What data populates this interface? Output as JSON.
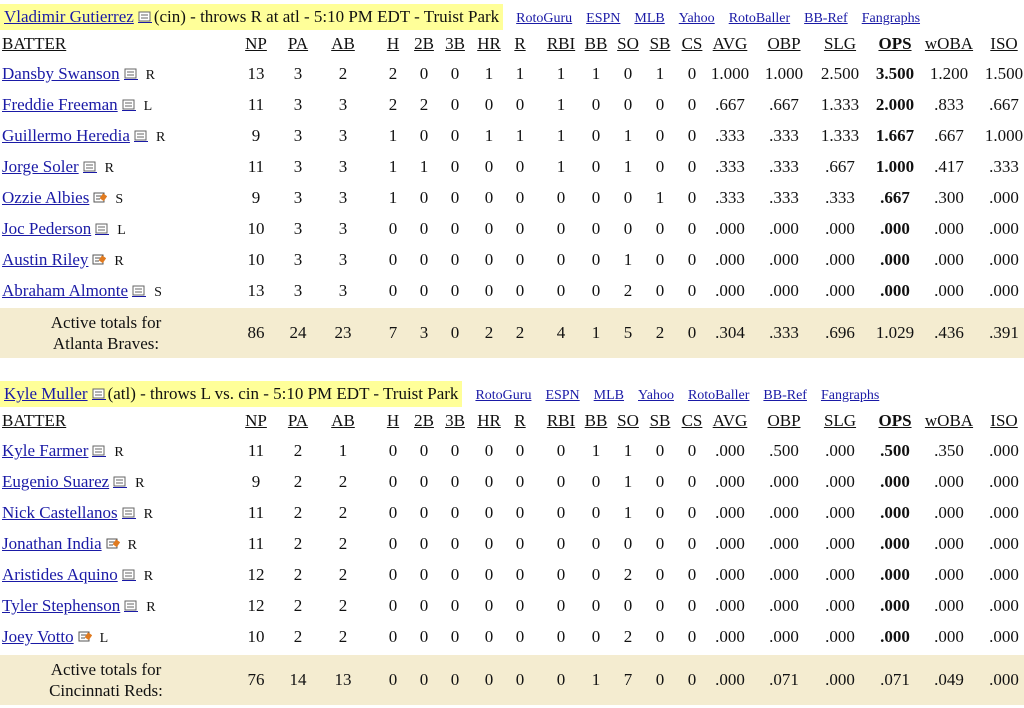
{
  "colors": {
    "highlight": "#ffff99",
    "link": "#1a1aa6",
    "totals_bg": "#f4ecd0"
  },
  "ext_links": [
    "RotoGuru",
    "ESPN",
    "MLB",
    "Yahoo",
    "RotoBaller",
    "BB-Ref",
    "Fangraphs"
  ],
  "columns": [
    "BATTER",
    "NP",
    "PA",
    "AB",
    "H",
    "2B",
    "3B",
    "HR",
    "R",
    "RBI",
    "BB",
    "SO",
    "SB",
    "CS",
    "AVG",
    "OBP",
    "SLG",
    "OPS",
    "wOBA",
    "ISO"
  ],
  "games": [
    {
      "pitcher": "Vladimir Gutierrez",
      "info": "(cin) - throws R at atl - 5:10 PM EDT - Truist Park",
      "batters": [
        {
          "name": "Dansby Swanson",
          "hand": "R",
          "icon": "note-icon",
          "stats": [
            "13",
            "3",
            "2",
            "2",
            "0",
            "0",
            "1",
            "1",
            "1",
            "1",
            "0",
            "1",
            "0",
            "1.000",
            "1.000",
            "2.500",
            "3.500",
            "1.200",
            "1.500"
          ]
        },
        {
          "name": "Freddie Freeman",
          "hand": "L",
          "icon": "note-icon",
          "stats": [
            "11",
            "3",
            "3",
            "2",
            "2",
            "0",
            "0",
            "0",
            "1",
            "0",
            "0",
            "0",
            "0",
            ".667",
            ".667",
            "1.333",
            "2.000",
            ".833",
            ".667"
          ]
        },
        {
          "name": "Guillermo Heredia",
          "hand": "R",
          "icon": "note-icon",
          "stats": [
            "9",
            "3",
            "3",
            "1",
            "0",
            "0",
            "1",
            "1",
            "1",
            "0",
            "1",
            "0",
            "0",
            ".333",
            ".333",
            "1.333",
            "1.667",
            ".667",
            "1.000"
          ]
        },
        {
          "name": "Jorge Soler",
          "hand": "R",
          "icon": "note-icon",
          "stats": [
            "11",
            "3",
            "3",
            "1",
            "1",
            "0",
            "0",
            "0",
            "1",
            "0",
            "1",
            "0",
            "0",
            ".333",
            ".333",
            ".667",
            "1.000",
            ".417",
            ".333"
          ]
        },
        {
          "name": "Ozzie Albies",
          "hand": "S",
          "icon": "note-edit-icon",
          "stats": [
            "9",
            "3",
            "3",
            "1",
            "0",
            "0",
            "0",
            "0",
            "0",
            "0",
            "0",
            "1",
            "0",
            ".333",
            ".333",
            ".333",
            ".667",
            ".300",
            ".000"
          ]
        },
        {
          "name": "Joc Pederson",
          "hand": "L",
          "icon": "note-icon",
          "stats": [
            "10",
            "3",
            "3",
            "0",
            "0",
            "0",
            "0",
            "0",
            "0",
            "0",
            "0",
            "0",
            "0",
            ".000",
            ".000",
            ".000",
            ".000",
            ".000",
            ".000"
          ]
        },
        {
          "name": "Austin Riley",
          "hand": "R",
          "icon": "note-edit-icon",
          "stats": [
            "10",
            "3",
            "3",
            "0",
            "0",
            "0",
            "0",
            "0",
            "0",
            "0",
            "1",
            "0",
            "0",
            ".000",
            ".000",
            ".000",
            ".000",
            ".000",
            ".000"
          ]
        },
        {
          "name": "Abraham Almonte",
          "hand": "S",
          "icon": "note-icon",
          "stats": [
            "13",
            "3",
            "3",
            "0",
            "0",
            "0",
            "0",
            "0",
            "0",
            "0",
            "2",
            "0",
            "0",
            ".000",
            ".000",
            ".000",
            ".000",
            ".000",
            ".000"
          ]
        }
      ],
      "totals_label": [
        "Active totals for",
        "Atlanta Braves:"
      ],
      "totals": [
        "86",
        "24",
        "23",
        "7",
        "3",
        "0",
        "2",
        "2",
        "4",
        "1",
        "5",
        "2",
        "0",
        ".304",
        ".333",
        ".696",
        "1.029",
        ".436",
        ".391"
      ]
    },
    {
      "pitcher": "Kyle Muller",
      "info": "(atl) - throws L vs. cin - 5:10 PM EDT - Truist Park",
      "batters": [
        {
          "name": "Kyle Farmer",
          "hand": "R",
          "icon": "note-icon",
          "stats": [
            "11",
            "2",
            "1",
            "0",
            "0",
            "0",
            "0",
            "0",
            "0",
            "1",
            "1",
            "0",
            "0",
            ".000",
            ".500",
            ".000",
            ".500",
            ".350",
            ".000"
          ]
        },
        {
          "name": "Eugenio Suarez",
          "hand": "R",
          "icon": "note-icon",
          "stats": [
            "9",
            "2",
            "2",
            "0",
            "0",
            "0",
            "0",
            "0",
            "0",
            "0",
            "1",
            "0",
            "0",
            ".000",
            ".000",
            ".000",
            ".000",
            ".000",
            ".000"
          ]
        },
        {
          "name": "Nick Castellanos",
          "hand": "R",
          "icon": "note-icon",
          "stats": [
            "11",
            "2",
            "2",
            "0",
            "0",
            "0",
            "0",
            "0",
            "0",
            "0",
            "1",
            "0",
            "0",
            ".000",
            ".000",
            ".000",
            ".000",
            ".000",
            ".000"
          ]
        },
        {
          "name": "Jonathan India",
          "hand": "R",
          "icon": "note-edit-icon",
          "stats": [
            "11",
            "2",
            "2",
            "0",
            "0",
            "0",
            "0",
            "0",
            "0",
            "0",
            "0",
            "0",
            "0",
            ".000",
            ".000",
            ".000",
            ".000",
            ".000",
            ".000"
          ]
        },
        {
          "name": "Aristides Aquino",
          "hand": "R",
          "icon": "note-icon",
          "stats": [
            "12",
            "2",
            "2",
            "0",
            "0",
            "0",
            "0",
            "0",
            "0",
            "0",
            "2",
            "0",
            "0",
            ".000",
            ".000",
            ".000",
            ".000",
            ".000",
            ".000"
          ]
        },
        {
          "name": "Tyler Stephenson",
          "hand": "R",
          "icon": "note-icon",
          "stats": [
            "12",
            "2",
            "2",
            "0",
            "0",
            "0",
            "0",
            "0",
            "0",
            "0",
            "0",
            "0",
            "0",
            ".000",
            ".000",
            ".000",
            ".000",
            ".000",
            ".000"
          ]
        },
        {
          "name": "Joey Votto",
          "hand": "L",
          "icon": "note-edit-icon",
          "stats": [
            "10",
            "2",
            "2",
            "0",
            "0",
            "0",
            "0",
            "0",
            "0",
            "0",
            "2",
            "0",
            "0",
            ".000",
            ".000",
            ".000",
            ".000",
            ".000",
            ".000"
          ]
        }
      ],
      "totals_label": [
        "Active totals for",
        "Cincinnati Reds:"
      ],
      "totals": [
        "76",
        "14",
        "13",
        "0",
        "0",
        "0",
        "0",
        "0",
        "0",
        "1",
        "7",
        "0",
        "0",
        ".000",
        ".071",
        ".000",
        ".071",
        ".049",
        ".000"
      ]
    }
  ]
}
